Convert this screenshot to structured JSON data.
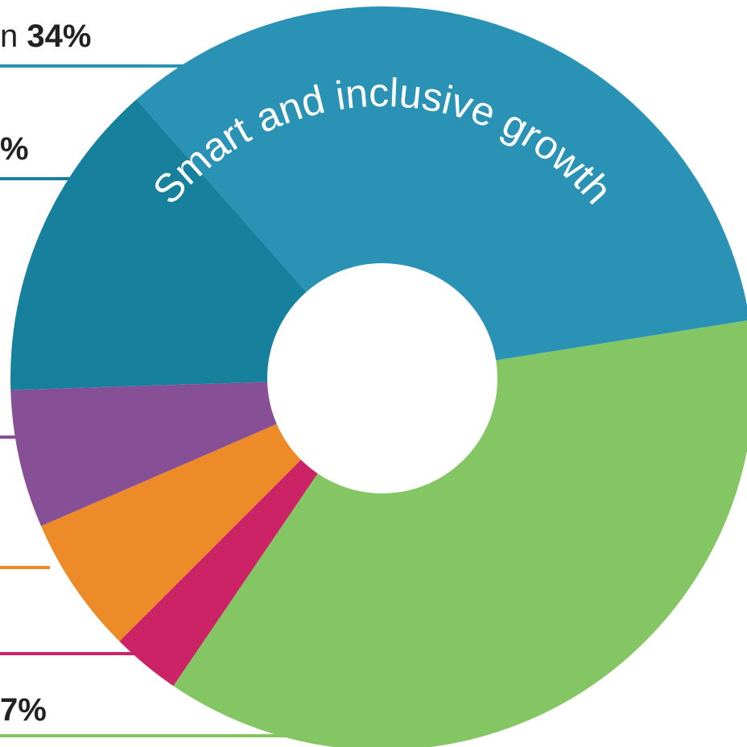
{
  "chart_data": {
    "type": "donut",
    "center_label": "Smart and inclusive growth",
    "categories": [
      null,
      null,
      null,
      null,
      null,
      null
    ],
    "values": [
      34,
      37,
      3,
      6,
      6,
      14
    ],
    "colors": [
      "#2a93b5",
      "#84c663",
      "#cc2366",
      "#ec8b28",
      "#874f96",
      "#17809c"
    ],
    "start_angle": 318.6,
    "annotations": [
      "n",
      "34%",
      "%",
      "7%"
    ]
  }
}
